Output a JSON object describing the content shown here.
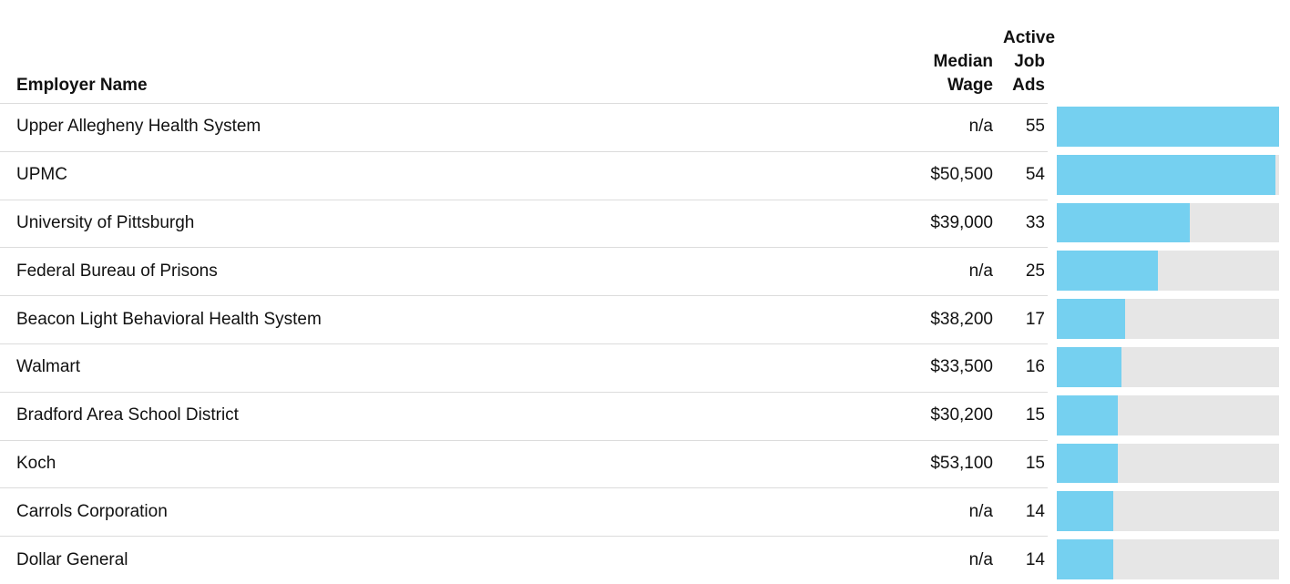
{
  "table": {
    "header": [
      "Employer Name",
      "Median Wage",
      "Active Job Ads"
    ],
    "rows": [
      [
        "Upper Allegheny Health System",
        "n/a",
        55
      ],
      [
        "UPMC",
        "$50,500",
        54
      ],
      [
        "University of Pittsburgh",
        "$39,000",
        33
      ],
      [
        "Federal Bureau of Prisons",
        "n/a",
        25
      ],
      [
        "Beacon Light Behavioral Health System",
        "$38,200",
        17
      ],
      [
        "Walmart",
        "$33,500",
        16
      ],
      [
        "Bradford Area School District",
        "$30,200",
        15
      ],
      [
        "Koch",
        "$53,100",
        15
      ],
      [
        "Carrols Corporation",
        "n/a",
        14
      ],
      [
        "Dollar General",
        "n/a",
        14
      ]
    ],
    "bar_color": "#75d0f0",
    "track_color": "#e6e6e6"
  }
}
